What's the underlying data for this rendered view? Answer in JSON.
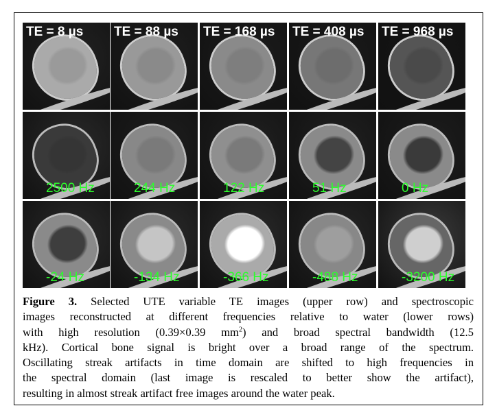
{
  "figure": {
    "rows": [
      {
        "labels": [
          "TE = 8 µs",
          "TE = 88 µs",
          "TE = 168 µs",
          "TE = 408 µs",
          "TE = 968 µs"
        ]
      },
      {
        "labels": [
          "2500 Hz",
          "244 Hz",
          "122 Hz",
          "51 Hz",
          "0 Hz"
        ]
      },
      {
        "labels": [
          "-24 Hz",
          "-134 Hz",
          "-366 Hz",
          "-488 Hz",
          "-3200 Hz"
        ]
      }
    ],
    "caption": {
      "label": "Figure 3.",
      "line0": "Selected UTE variable TE images (upper row) and spectroscopic",
      "line1": "images reconstructed at different frequencies relative to water (lower rows)",
      "line2_before": "with high resolution (0.39×0.39 mm",
      "line2_sup": "2",
      "line2_after": ") and broad spectral bandwidth (12.5",
      "line3": "kHz). Cortical bone signal is bright over a broad range of the spectrum.",
      "line4": "Oscillating streak artifacts in time domain are shifted to high frequencies in",
      "line5": "the spectral domain (last image is rescaled to better show the artifact),",
      "line6": "resulting in almost streak artifact free images around the water peak."
    }
  }
}
